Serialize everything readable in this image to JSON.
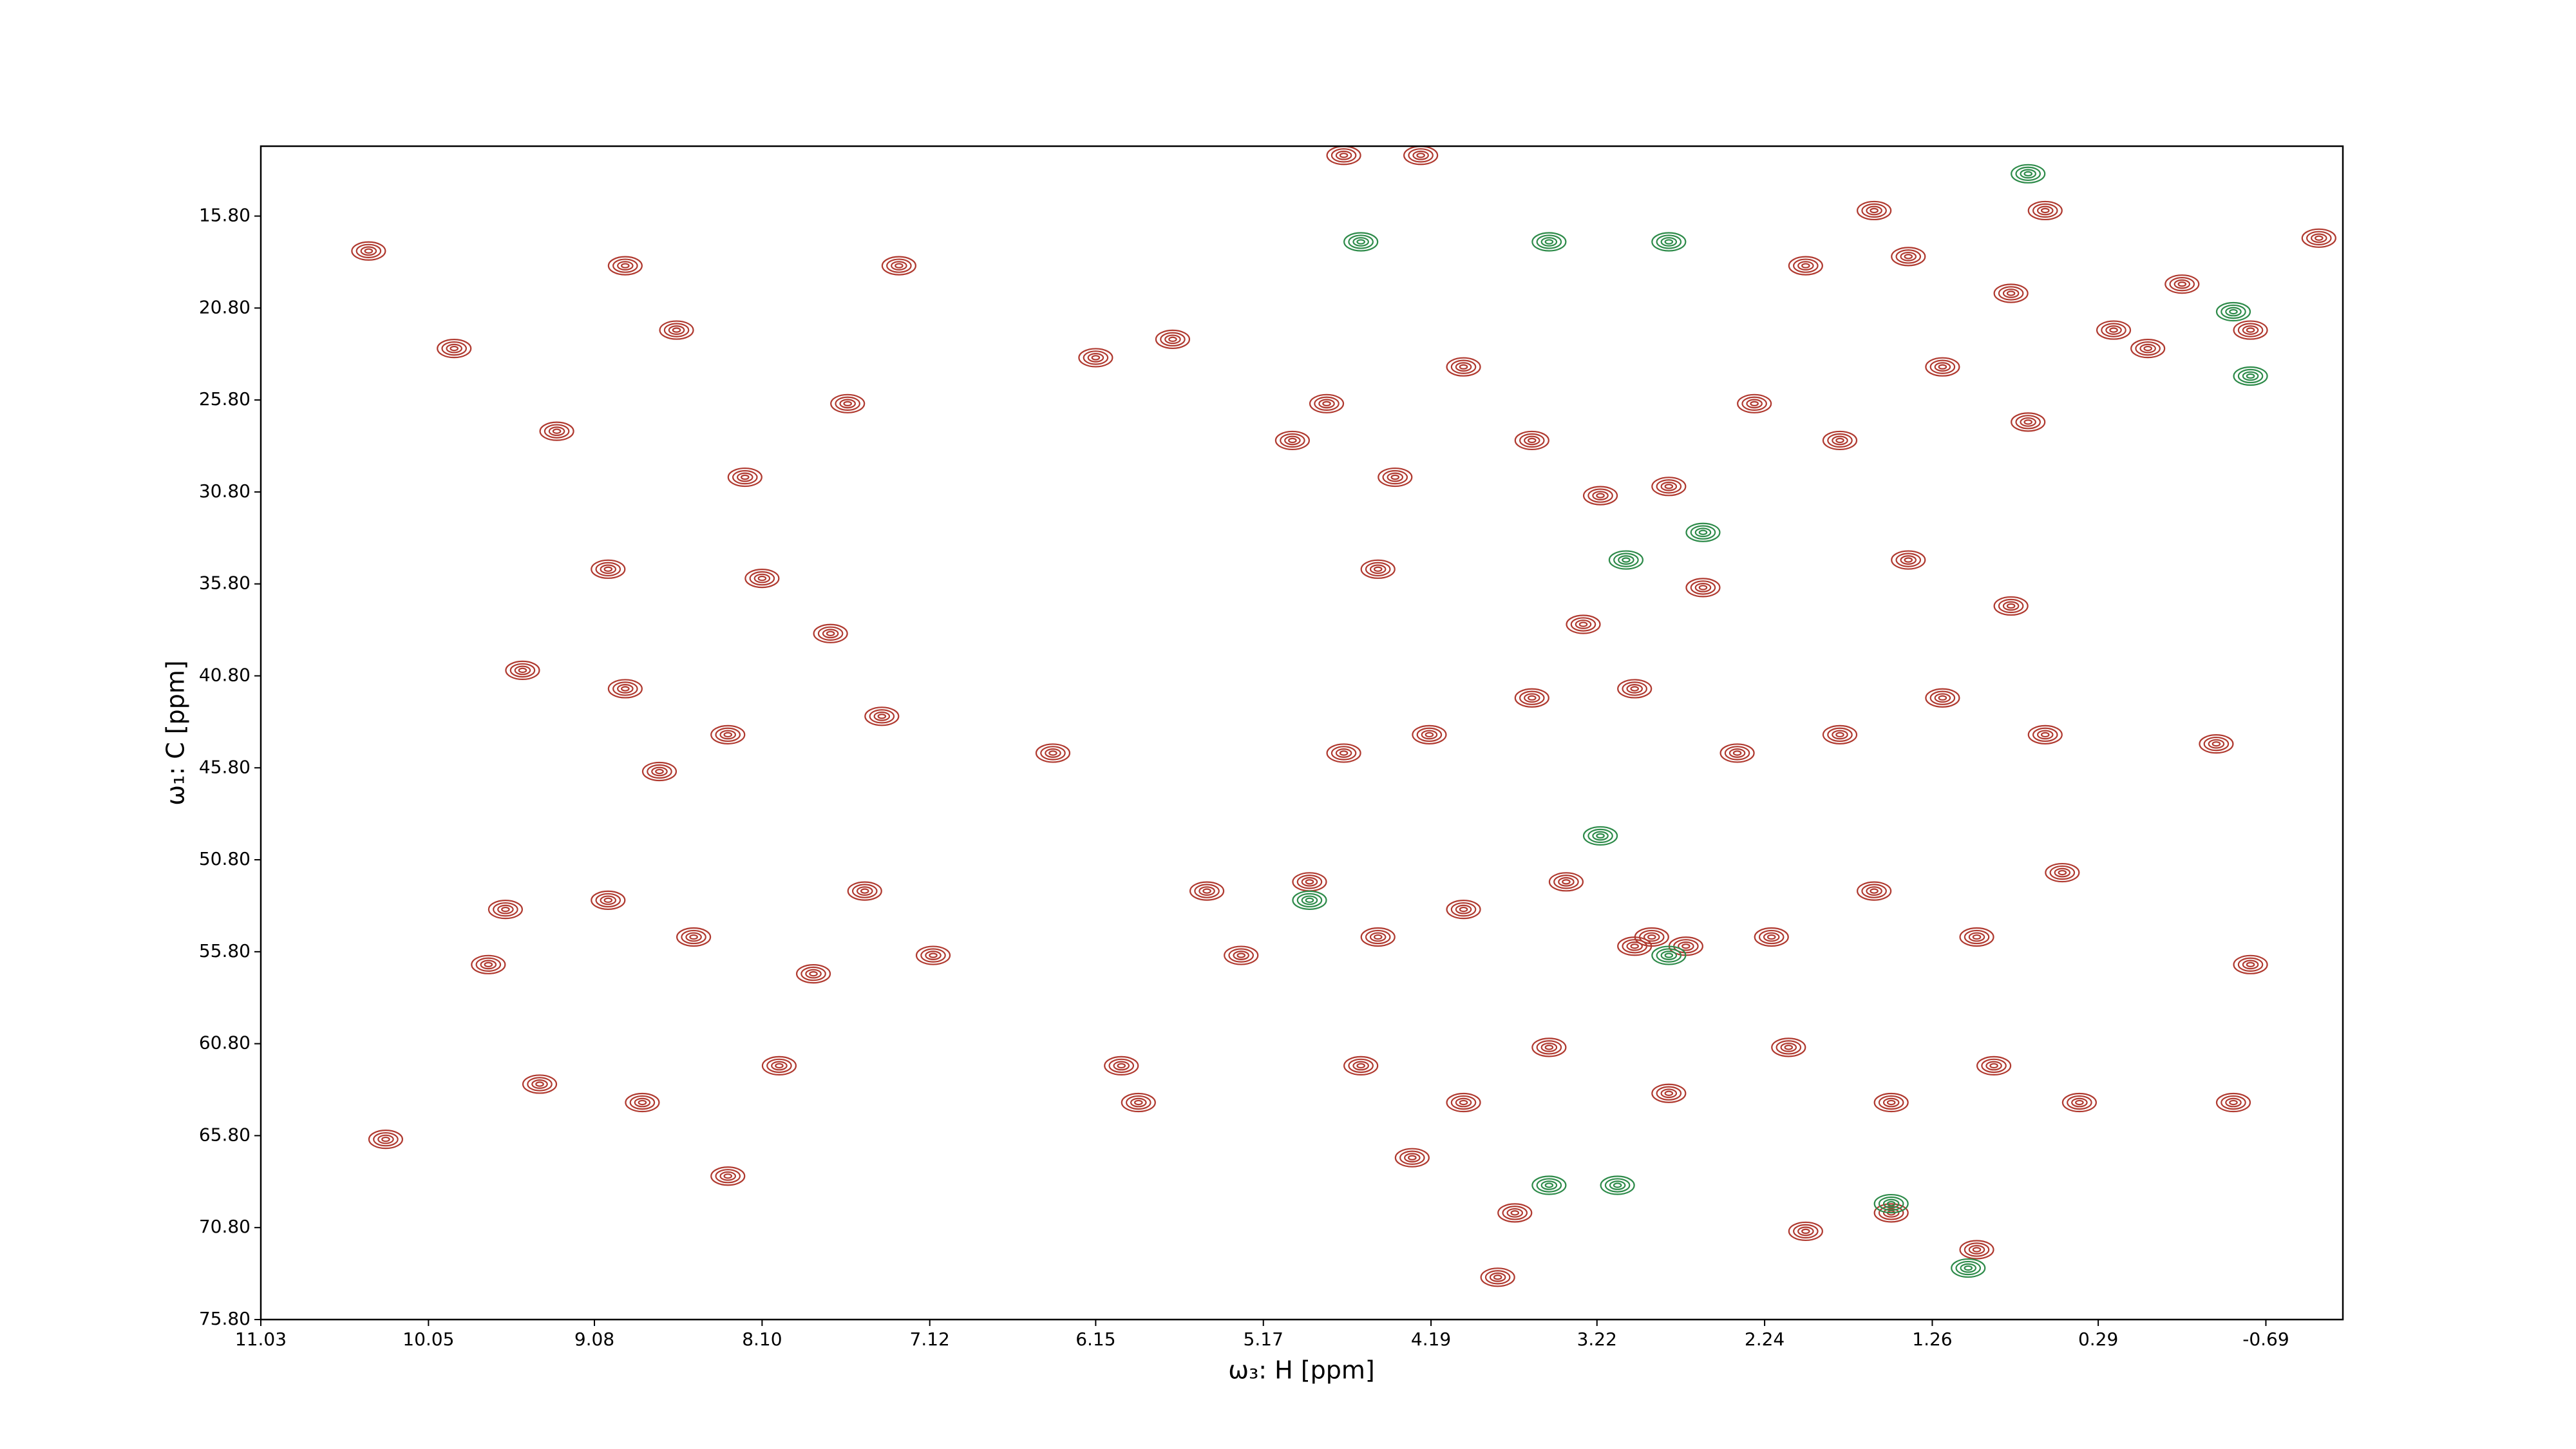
{
  "chart_data": {
    "type": "contour",
    "xlabel": "ω₃: H [ppm]",
    "ylabel": "ω₁: C [ppm]",
    "xlim": [
      11.03,
      -1.14
    ],
    "ylim": [
      75.8,
      12.0
    ],
    "xticks": [
      11.03,
      10.05,
      9.08,
      {
        "value": 8.1,
        "label": "8.10"
      },
      7.12,
      6.15,
      5.17,
      4.19,
      3.22,
      2.24,
      1.26,
      0.29,
      -0.69
    ],
    "yticks": [
      {
        "value": 15.8,
        "label": "15.80"
      },
      {
        "value": 20.8,
        "label": "20.80"
      },
      {
        "value": 25.8,
        "label": "25.80"
      },
      {
        "value": 30.8,
        "label": "30.80"
      },
      {
        "value": 35.8,
        "label": "35.80"
      },
      {
        "value": 40.8,
        "label": "40.80"
      },
      {
        "value": 45.8,
        "label": "45.80"
      },
      {
        "value": 50.8,
        "label": "50.80"
      },
      {
        "value": 55.8,
        "label": "55.80"
      },
      {
        "value": 60.8,
        "label": "60.80"
      },
      {
        "value": 65.8,
        "label": "65.80"
      },
      {
        "value": 70.8,
        "label": "70.80"
      },
      {
        "value": 75.8,
        "label": "75.80"
      }
    ],
    "series": [
      {
        "color": "#b03a30",
        "x": [
          10.4,
          9.9,
          9.3,
          8.9,
          8.6,
          8.2,
          7.6,
          7.3,
          9.5,
          8.9,
          8.3,
          7.4,
          8.7,
          9.0,
          8.5,
          7.8,
          7.1,
          9.6,
          9.4,
          8.8,
          8.0,
          10.3,
          8.3,
          9.7,
          7.5,
          8.1,
          9.0,
          7.7,
          6.15,
          5.7,
          6.0,
          5.5,
          5.3,
          5.0,
          6.4,
          4.8,
          4.4,
          4.0,
          3.6,
          3.2,
          2.8,
          2.3,
          1.8,
          1.2,
          0.7,
          0.2,
          4.7,
          4.2,
          3.6,
          3.0,
          2.4,
          1.8,
          1.2,
          0.6,
          4.9,
          4.5,
          4.0,
          3.4,
          2.9,
          2.2,
          1.6,
          1.0,
          0.5,
          4.6,
          4.0,
          3.5,
          2.8,
          2.1,
          1.5,
          0.9,
          0.4,
          4.3,
          3.7,
          3.8,
          1.5,
          2.0,
          1.0,
          3.3,
          2.6,
          1.4,
          0.8,
          4.5,
          2.0,
          1.4,
          0.8,
          1.6,
          0.6,
          -0.2,
          0.0,
          -0.6,
          -1.0,
          -0.6,
          -0.5,
          -0.4,
          3.0,
          2.7,
          5.9,
          4.25,
          4.7
        ],
        "y": [
          17.7,
          23,
          27.5,
          18.5,
          22,
          30,
          26,
          18.5,
          40.5,
          41.5,
          44,
          43,
          46,
          53,
          55,
          57,
          56,
          53.5,
          63,
          64,
          62,
          66,
          68,
          56.5,
          52.5,
          35.5,
          35,
          38.5,
          23.5,
          22.5,
          62,
          52.5,
          56,
          28,
          45,
          26,
          30,
          24,
          28,
          31,
          30.5,
          26,
          28,
          24,
          27,
          22,
          45,
          44,
          42,
          41.5,
          45,
          44,
          42,
          44,
          52,
          55,
          53.5,
          52,
          55,
          55,
          52.5,
          55,
          51.5,
          62,
          64,
          61,
          63.5,
          61,
          64,
          62,
          64,
          67,
          70,
          73.5,
          70,
          71,
          72,
          38,
          36,
          34.5,
          37,
          35,
          18.5,
          18,
          20,
          15.5,
          15.5,
          19.5,
          23,
          22,
          17,
          56.5,
          64,
          44.5,
          55.5,
          55.5,
          64,
          12.5,
          12.5
        ]
      },
      {
        "color": "#2e8b4a",
        "x": [
          4.6,
          3.5,
          2.8,
          3.05,
          2.6,
          3.5,
          3.1,
          -0.5,
          -0.6,
          2.8,
          3.2,
          4.9,
          1.5,
          0.7,
          1.05
        ],
        "y": [
          17.2,
          17.2,
          17.2,
          34.5,
          33,
          68.5,
          68.5,
          21,
          24.5,
          56,
          49.5,
          53,
          69.5,
          13.5,
          73
        ]
      }
    ]
  }
}
